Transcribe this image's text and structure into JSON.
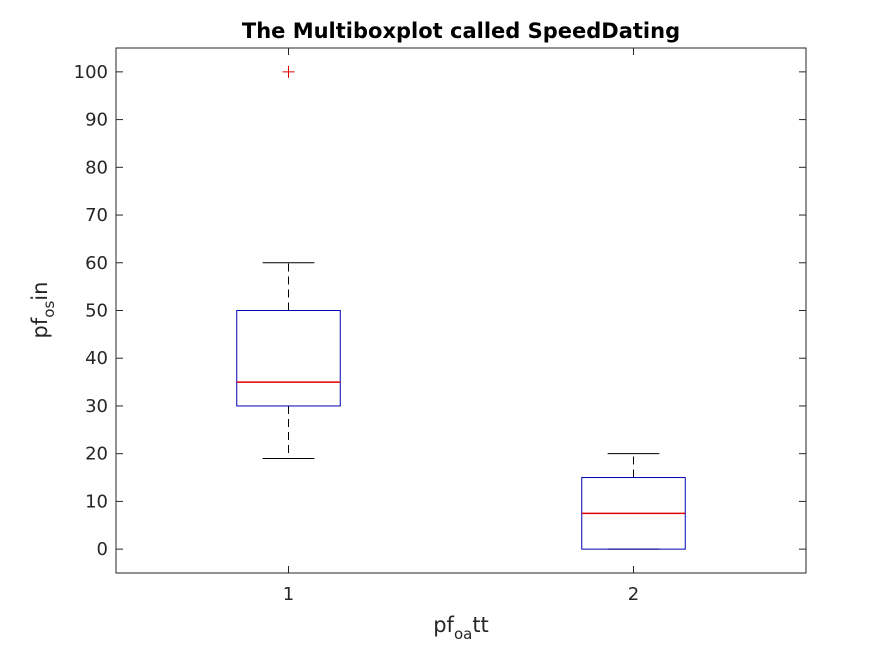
{
  "chart_data": {
    "type": "boxplot",
    "title": "The Multiboxplot called SpeedDating",
    "xlabel": {
      "base": "pf",
      "sub": "oa",
      "rest": "tt"
    },
    "ylabel": {
      "base": "pf",
      "sub": "os",
      "rest": "in"
    },
    "categories": [
      "1",
      "2"
    ],
    "boxes": [
      {
        "category": "1",
        "whisker_low": 19,
        "q1": 30,
        "median": 35,
        "q3": 50,
        "whisker_high": 60,
        "outliers": [
          100
        ]
      },
      {
        "category": "2",
        "whisker_low": 0,
        "q1": 0,
        "median": 7.5,
        "q3": 15,
        "whisker_high": 20,
        "outliers": []
      }
    ],
    "yticks": [
      0,
      10,
      20,
      30,
      40,
      50,
      60,
      70,
      80,
      90,
      100
    ],
    "ylim": [
      -5,
      105
    ],
    "xlim": [
      0.5,
      2.5
    ],
    "grid": false,
    "colors": {
      "box": "#0000b3",
      "median": "#e00000",
      "whisker": "#000000",
      "outlier": "#e00000",
      "axis": "#262626"
    }
  }
}
